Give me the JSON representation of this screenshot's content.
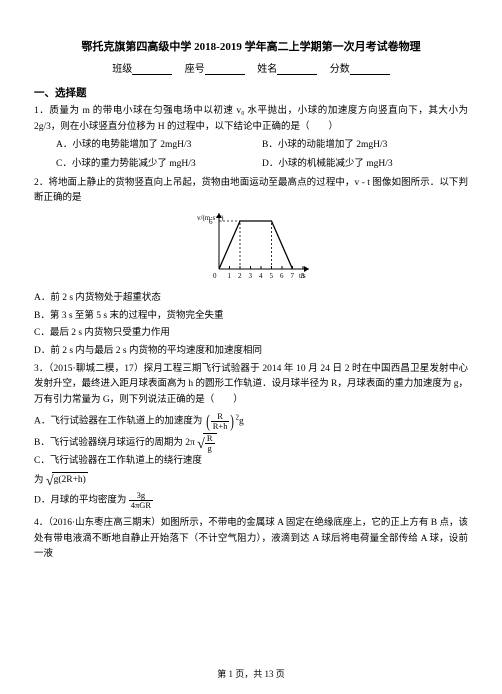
{
  "title": "鄂托克旗第四高级中学 2018-2019 学年高二上学期第一次月考试卷物理",
  "header": {
    "class_label": "班级",
    "seat_label": "座号",
    "name_label": "姓名",
    "score_label": "分数"
  },
  "section1": "一、选择题",
  "q1": {
    "stem1": "1．质量为 m 的带电小球在匀强电场中以初速 v₀ 水平抛出，小球的加速度方向竖直向下，其大小为 2g/3，则在小球竖直分位移为 H 的过程中，以下结论中正确的是（　　）",
    "a": "A．小球的电势能增加了 2mgH/3",
    "b": "B．小球的动能增加了 2mgH/3",
    "c": "C．小球的重力势能减少了 mgH/3",
    "d": "D．小球的机械能减少了 mgH/3"
  },
  "q2": {
    "stem": "2．将地面上静止的货物竖直向上吊起，货物由地面运动至最高点的过程中，v - t 图像如图所示．以下判断正确的是",
    "a": "A．前 2 s 内货物处于超重状态",
    "b": "B．第 3 s 至第 5 s 末的过程中，货物完全失重",
    "c": "C．最后 2 s 内货物只受重力作用",
    "d": "D．前 2 s 内与最后 2 s 内货物的平均速度和加速度相同"
  },
  "chart": {
    "ylabel": "v/(m·s⁻¹)",
    "xlabel": "t/s",
    "ymax": 6,
    "xticks": [
      0,
      1,
      2,
      3,
      4,
      5,
      6,
      7,
      8
    ],
    "points": [
      [
        0,
        0
      ],
      [
        2,
        6
      ],
      [
        5,
        6
      ],
      [
        7,
        0
      ]
    ],
    "axis_color": "#000000",
    "line_color": "#000000",
    "dash_color": "#000000",
    "bg": "#ffffff",
    "width": 120,
    "height": 74
  },
  "q3": {
    "stem": "3．（2015·聊城二模，17）探月工程三期飞行试验器于 2014 年 10 月 24 日 2 时在中国西昌卫星发射中心发射升空，最终进入距月球表面高为 h 的圆形工作轨道．设月球半径为 R，月球表面的重力加速度为 g，万有引力常量为 G，则下列说法正确的是（　　）",
    "a_pre": "A．飞行试验器在工作轨道上的加速度为",
    "a_num": "R",
    "a_den": "R+h",
    "a_post": "g",
    "b_pre": "B．飞行试验器绕月球运行的周期为 2π",
    "b_num": "R",
    "b_den": "g",
    "c": "C．飞行试验器在工作轨道上的绕行速度",
    "c2_pre": "为",
    "c2_body": "g(2R+h)",
    "d_pre": "D．月球的平均密度为",
    "d_num": "3g",
    "d_den": "4πGR"
  },
  "q4": {
    "stem": "4．（2016·山东枣庄高三期末）如图所示，不带电的金属球 A 固定在绝缘底座上，它的正上方有 B 点，该处有带电液滴不断地自静止开始落下（不计空气阻力），液滴到达 A 球后将电荷量全部传给 A 球，设前一液"
  },
  "footer": "第 1 页，共 13 页"
}
